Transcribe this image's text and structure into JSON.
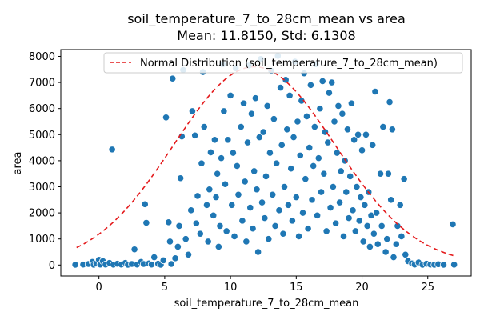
{
  "chart_data": {
    "type": "scatter",
    "title": "soil_temperature_7_to_28cm_mean vs area",
    "subtitle": "Mean: 11.8150, Std: 6.1308",
    "xlabel": "soil_temperature_7_to_28cm_mean",
    "ylabel": "area",
    "xlim": [
      -2.9,
      28.3
    ],
    "ylim": [
      -420,
      8260
    ],
    "x_ticks": [
      0,
      5,
      10,
      15,
      20,
      25
    ],
    "y_ticks": [
      0,
      1000,
      2000,
      3000,
      4000,
      5000,
      6000,
      7000,
      8000
    ],
    "grid": false,
    "legend_position": "top-right",
    "point_color": "#1f77b4",
    "curve_color": "#e41a1c",
    "series": [
      {
        "name": "Normal Distribution (soil_temperature_7_to_28cm_mean)",
        "kind": "normal-curve",
        "mean": 11.815,
        "std": 6.1308,
        "peak": 7600,
        "x_range": [
          -1.7,
          27.0
        ]
      }
    ],
    "points": [
      [
        -1.8,
        10
      ],
      [
        -1.2,
        20
      ],
      [
        -0.8,
        40
      ],
      [
        -0.5,
        120
      ],
      [
        -0.4,
        10
      ],
      [
        -0.2,
        60
      ],
      [
        0.0,
        200
      ],
      [
        0.1,
        20
      ],
      [
        0.3,
        150
      ],
      [
        0.5,
        20
      ],
      [
        0.8,
        80
      ],
      [
        1.0,
        4430
      ],
      [
        1.1,
        15
      ],
      [
        1.4,
        50
      ],
      [
        1.7,
        20
      ],
      [
        2.0,
        80
      ],
      [
        2.2,
        10
      ],
      [
        2.5,
        40
      ],
      [
        2.7,
        600
      ],
      [
        2.9,
        20
      ],
      [
        3.2,
        120
      ],
      [
        3.4,
        40
      ],
      [
        3.5,
        2330
      ],
      [
        3.6,
        1620
      ],
      [
        3.8,
        60
      ],
      [
        4.0,
        20
      ],
      [
        4.2,
        300
      ],
      [
        4.5,
        50
      ],
      [
        4.7,
        10
      ],
      [
        4.9,
        180
      ],
      [
        5.1,
        5660
      ],
      [
        5.3,
        1640
      ],
      [
        5.4,
        900
      ],
      [
        5.5,
        40
      ],
      [
        5.6,
        7150
      ],
      [
        5.8,
        260
      ],
      [
        6.0,
        700
      ],
      [
        6.1,
        1500
      ],
      [
        6.2,
        3330
      ],
      [
        6.3,
        4930
      ],
      [
        6.4,
        7480
      ],
      [
        6.6,
        1000
      ],
      [
        6.8,
        400
      ],
      [
        7.0,
        2100
      ],
      [
        7.1,
        5900
      ],
      [
        7.3,
        4970
      ],
      [
        7.4,
        1600
      ],
      [
        7.5,
        2650
      ],
      [
        7.7,
        1200
      ],
      [
        7.8,
        3900
      ],
      [
        7.9,
        7400
      ],
      [
        8.0,
        5300
      ],
      [
        8.2,
        2300
      ],
      [
        8.3,
        900
      ],
      [
        8.4,
        2900
      ],
      [
        8.5,
        4320
      ],
      [
        8.7,
        1900
      ],
      [
        8.8,
        4800
      ],
      [
        8.9,
        2600
      ],
      [
        9.0,
        3500
      ],
      [
        9.1,
        700
      ],
      [
        9.2,
        1500
      ],
      [
        9.3,
        4100
      ],
      [
        9.4,
        7700
      ],
      [
        9.5,
        5900
      ],
      [
        9.6,
        3100
      ],
      [
        9.7,
        1300
      ],
      [
        9.8,
        4800
      ],
      [
        10.0,
        6500
      ],
      [
        10.1,
        2300
      ],
      [
        10.2,
        4300
      ],
      [
        10.3,
        1100
      ],
      [
        10.4,
        7550
      ],
      [
        10.5,
        3800
      ],
      [
        10.6,
        2700
      ],
      [
        10.8,
        5300
      ],
      [
        10.9,
        1700
      ],
      [
        11.0,
        6200
      ],
      [
        11.1,
        3200
      ],
      [
        11.2,
        900
      ],
      [
        11.3,
        4700
      ],
      [
        11.4,
        7650
      ],
      [
        11.5,
        2200
      ],
      [
        11.6,
        5800
      ],
      [
        11.7,
        1400
      ],
      [
        11.8,
        3600
      ],
      [
        11.9,
        6400
      ],
      [
        12.0,
        2900
      ],
      [
        12.1,
        500
      ],
      [
        12.2,
        4900
      ],
      [
        12.3,
        7900
      ],
      [
        12.4,
        2400
      ],
      [
        12.5,
        5100
      ],
      [
        12.6,
        1800
      ],
      [
        12.7,
        3400
      ],
      [
        12.8,
        6100
      ],
      [
        12.9,
        1000
      ],
      [
        13.0,
        4300
      ],
      [
        13.1,
        7450
      ],
      [
        13.2,
        2700
      ],
      [
        13.3,
        5600
      ],
      [
        13.4,
        1500
      ],
      [
        13.5,
        3900
      ],
      [
        13.6,
        8020
      ],
      [
        13.7,
        2100
      ],
      [
        13.8,
        6800
      ],
      [
        13.9,
        4600
      ],
      [
        14.0,
        1200
      ],
      [
        14.1,
        3000
      ],
      [
        14.2,
        7100
      ],
      [
        14.3,
        5200
      ],
      [
        14.4,
        2300
      ],
      [
        14.5,
        6500
      ],
      [
        14.6,
        3700
      ],
      [
        14.7,
        1700
      ],
      [
        14.8,
        4900
      ],
      [
        14.9,
        7800
      ],
      [
        15.0,
        2600
      ],
      [
        15.1,
        5500
      ],
      [
        15.2,
        1100
      ],
      [
        15.3,
        4200
      ],
      [
        15.4,
        6300
      ],
      [
        15.5,
        2000
      ],
      [
        15.6,
        7350
      ],
      [
        15.7,
        3300
      ],
      [
        15.8,
        5700
      ],
      [
        15.9,
        1400
      ],
      [
        16.0,
        4500
      ],
      [
        16.1,
        6900
      ],
      [
        16.2,
        2500
      ],
      [
        16.3,
        3800
      ],
      [
        16.4,
        5300
      ],
      [
        16.5,
        7700
      ],
      [
        16.6,
        1900
      ],
      [
        16.7,
        4100
      ],
      [
        16.8,
        6000
      ],
      [
        16.9,
        2800
      ],
      [
        17.0,
        7050
      ],
      [
        17.1,
        3500
      ],
      [
        17.2,
        5100
      ],
      [
        17.3,
        1300
      ],
      [
        17.4,
        4700
      ],
      [
        17.5,
        6600
      ],
      [
        17.6,
        2200
      ],
      [
        17.7,
        7000
      ],
      [
        17.8,
        3000
      ],
      [
        17.9,
        5500
      ],
      [
        18.0,
        1600
      ],
      [
        18.1,
        4300
      ],
      [
        18.2,
        6100
      ],
      [
        18.3,
        2400
      ],
      [
        18.4,
        3600
      ],
      [
        18.5,
        5800
      ],
      [
        18.6,
        1100
      ],
      [
        18.7,
        4000
      ],
      [
        18.8,
        2800
      ],
      [
        18.9,
        5200
      ],
      [
        19.0,
        1800
      ],
      [
        19.1,
        3400
      ],
      [
        19.2,
        6200
      ],
      [
        19.3,
        2100
      ],
      [
        19.4,
        4800
      ],
      [
        19.5,
        1300
      ],
      [
        19.6,
        3000
      ],
      [
        19.7,
        5000
      ],
      [
        19.8,
        1700
      ],
      [
        19.9,
        2600
      ],
      [
        20.0,
        4400
      ],
      [
        20.1,
        900
      ],
      [
        20.2,
        2300
      ],
      [
        20.3,
        5000
      ],
      [
        20.4,
        1500
      ],
      [
        20.5,
        2800
      ],
      [
        20.6,
        700
      ],
      [
        20.7,
        1900
      ],
      [
        20.8,
        4600
      ],
      [
        20.9,
        1200
      ],
      [
        21.0,
        6650
      ],
      [
        21.1,
        2000
      ],
      [
        21.2,
        800
      ],
      [
        21.4,
        3500
      ],
      [
        21.5,
        1500
      ],
      [
        21.6,
        5300
      ],
      [
        21.8,
        500
      ],
      [
        21.9,
        1000
      ],
      [
        22.0,
        3500
      ],
      [
        22.1,
        6250
      ],
      [
        22.2,
        2500
      ],
      [
        22.3,
        5200
      ],
      [
        22.4,
        300
      ],
      [
        22.6,
        800
      ],
      [
        22.7,
        1500
      ],
      [
        22.9,
        2300
      ],
      [
        23.0,
        1100
      ],
      [
        23.2,
        3300
      ],
      [
        23.3,
        400
      ],
      [
        23.5,
        150
      ],
      [
        23.8,
        60
      ],
      [
        24.0,
        20
      ],
      [
        24.3,
        100
      ],
      [
        24.6,
        10
      ],
      [
        24.9,
        50
      ],
      [
        25.2,
        20
      ],
      [
        25.5,
        10
      ],
      [
        25.8,
        30
      ],
      [
        26.2,
        10
      ],
      [
        26.9,
        1560
      ],
      [
        27.0,
        15
      ]
    ]
  }
}
